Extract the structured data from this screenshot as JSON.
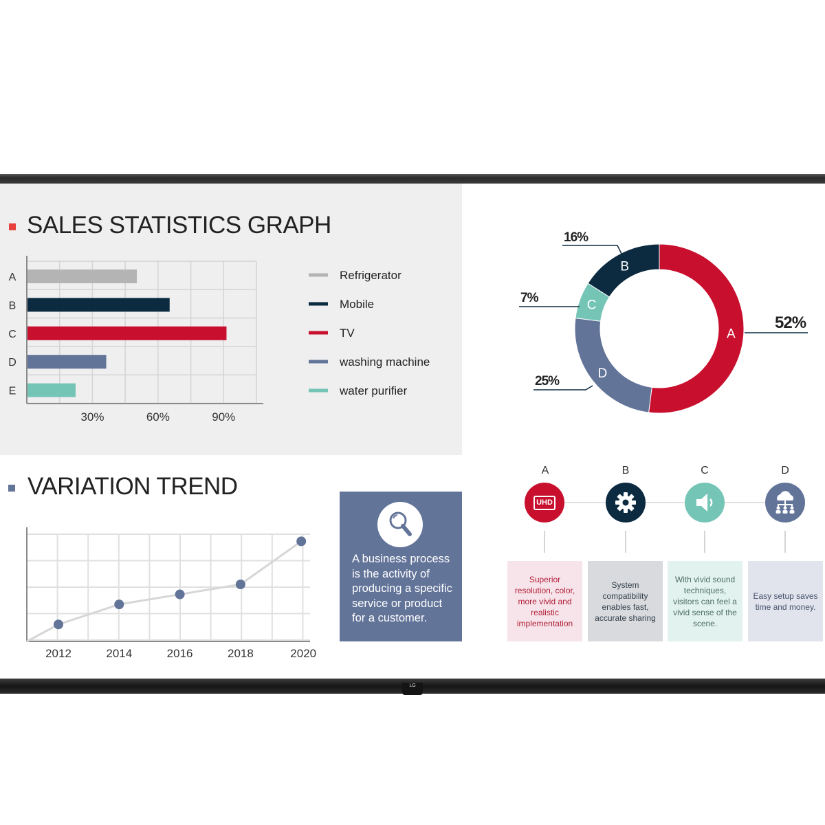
{
  "sales": {
    "title": "SALES STATISTICS GRAPH",
    "accent": "#e8403c",
    "chart_data": {
      "type": "bar",
      "orientation": "horizontal",
      "categories": [
        "A",
        "B",
        "C",
        "D",
        "E"
      ],
      "values": [
        50,
        65,
        91,
        36,
        22
      ],
      "colors": [
        "#b4b4b4",
        "#0c2a40",
        "#c8102e",
        "#637499",
        "#75c5b7"
      ],
      "xticks": [
        "30%",
        "60%",
        "90%"
      ],
      "xlim": [
        0,
        105
      ],
      "grid": true
    },
    "legend": [
      {
        "label": "Refrigerator",
        "color": "#b4b4b4"
      },
      {
        "label": "Mobile",
        "color": "#0c2a40"
      },
      {
        "label": "TV",
        "color": "#c8102e"
      },
      {
        "label": "washing machine",
        "color": "#637499"
      },
      {
        "label": "water purifier",
        "color": "#75c5b7"
      }
    ]
  },
  "donut": {
    "chart_data": {
      "type": "pie",
      "style": "donut",
      "slices": [
        {
          "label": "A",
          "value": 52,
          "display": "52%",
          "color": "#c8102e"
        },
        {
          "label": "D",
          "value": 25,
          "display": "25%",
          "color": "#637499"
        },
        {
          "label": "C",
          "value": 7,
          "display": "7%",
          "color": "#75c5b7"
        },
        {
          "label": "B",
          "value": 16,
          "display": "16%",
          "color": "#0c2a40"
        }
      ]
    }
  },
  "trend": {
    "title": "VARIATION TREND",
    "accent": "#637499",
    "chart_data": {
      "type": "line",
      "x": [
        "2012",
        "2014",
        "2016",
        "2018",
        "2020"
      ],
      "values": [
        10,
        30,
        40,
        50,
        93
      ],
      "ylim": [
        -7,
        107
      ],
      "point_color": "#637499",
      "line_color": "#d6d6d6",
      "grid": true
    }
  },
  "info": {
    "icon": "magnifier-icon",
    "text": "A business process is the activity of producing a specific service or product for a customer."
  },
  "features": [
    {
      "letter": "A",
      "icon": "uhd-icon",
      "icon_text": "UHD",
      "color": "#c8102e",
      "card_bg": "#f7e4ea",
      "text_color": "#b01d37",
      "text": "Superior resolution, color, more vivid and realistic implementation"
    },
    {
      "letter": "B",
      "icon": "gear-icon",
      "color": "#0c2a40",
      "card_bg": "#d8dadd",
      "text_color": "#333f4b",
      "text": "System compatibility enables fast, accurate sharing"
    },
    {
      "letter": "C",
      "icon": "speaker-icon",
      "color": "#75c5b7",
      "card_bg": "#e2f2ee",
      "text_color": "#4f6f68",
      "text": "With vivid sound techniques, visitors can feel a vivid sense of the scene."
    },
    {
      "letter": "D",
      "icon": "cloud-network-icon",
      "color": "#637499",
      "card_bg": "#e1e4ec",
      "text_color": "#45506a",
      "text": "Easy setup saves time and money."
    }
  ],
  "brand": "LG"
}
